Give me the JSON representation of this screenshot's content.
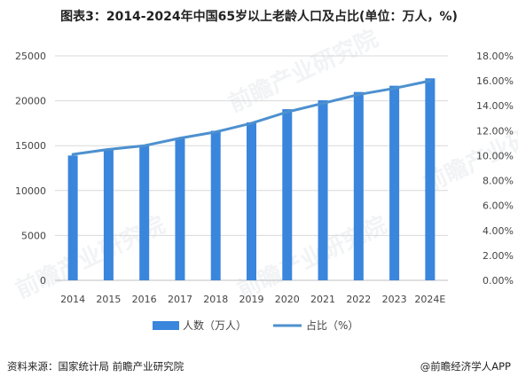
{
  "title": "图表3：2014-2024年中国65岁以上老龄人口及占比(单位：万人，%)",
  "source": "资料来源：国家统计局 前瞻产业研究院",
  "credit": "@前瞻经济学人APP",
  "watermark": "前瞻产业研究院",
  "colors": {
    "bar": "#3a86dc",
    "line": "#4d90cf",
    "grid": "#d9d9d9",
    "axis": "#bfbfbf"
  },
  "chart_data": {
    "type": "bar",
    "categories": [
      "2014",
      "2015",
      "2016",
      "2017",
      "2018",
      "2019",
      "2020",
      "2021",
      "2022",
      "2023",
      "2024E"
    ],
    "series": [
      {
        "name": "人数（万人）",
        "type": "bar",
        "axis": "left",
        "values": [
          13902,
          14524,
          15037,
          15831,
          16658,
          17603,
          19064,
          20056,
          20978,
          21676,
          22500
        ]
      },
      {
        "name": "占比（%）",
        "type": "line",
        "axis": "right",
        "values": [
          10.1,
          10.5,
          10.8,
          11.4,
          11.9,
          12.6,
          13.5,
          14.2,
          14.9,
          15.4,
          16.0
        ]
      }
    ],
    "ylim": [
      0,
      25000
    ],
    "yticks": [
      "0",
      "5000",
      "10000",
      "15000",
      "20000",
      "25000"
    ],
    "y2lim": [
      0,
      18
    ],
    "y2ticks": [
      "0.00%",
      "2.00%",
      "4.00%",
      "6.00%",
      "8.00%",
      "10.00%",
      "12.00%",
      "14.00%",
      "16.00%",
      "18.00%"
    ],
    "legend": "bottom",
    "grid": true
  }
}
